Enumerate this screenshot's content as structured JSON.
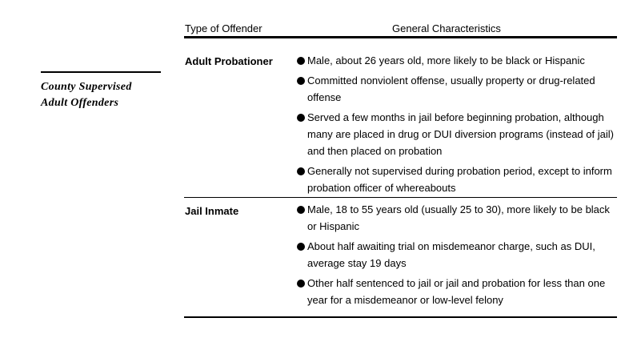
{
  "side_heading": {
    "line1": "County Supervised",
    "line2": "Adult Offenders"
  },
  "columns": {
    "type": "Type of Offender",
    "characteristics": "General Characteristics"
  },
  "rows": [
    {
      "offender": "Adult Probationer",
      "bullets": [
        "Male, about 26 years old, more likely to be black or Hispanic",
        "Committed nonviolent offense, usually property or drug-related offense",
        "Served a few months in jail before beginning probation, although many are placed in drug or DUI diversion programs (instead of jail) and then placed on probation",
        "Generally not supervised during probation period, except to inform probation officer of whereabouts"
      ]
    },
    {
      "offender": "Jail Inmate",
      "bullets": [
        "Male, 18 to 55 years old (usually 25 to 30), more likely to be black or Hispanic",
        "About half awaiting trial on misdemeanor charge, such as DUI, average stay 19 days",
        "Other half sentenced to jail or jail and probation for less than one year for a misdemeanor or low-level felony"
      ]
    }
  ]
}
